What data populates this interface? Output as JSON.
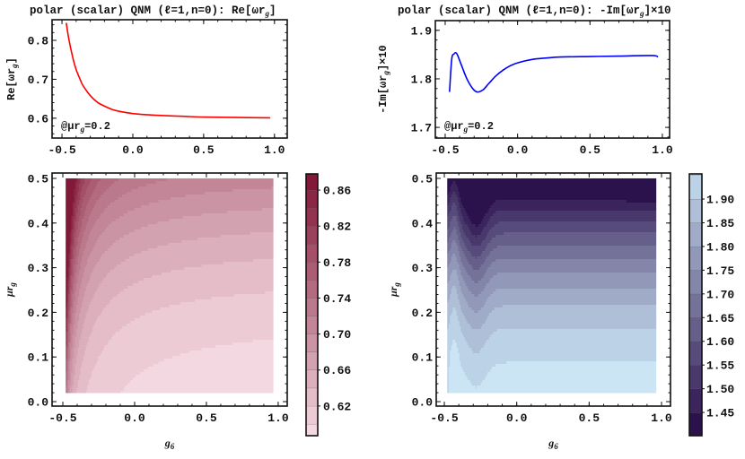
{
  "chart_data": [
    {
      "type": "line",
      "title": {
        "main": "polar (scalar) QNM (ℓ=1,n=0): Re[ωr",
        "sub": "g",
        "tail": "]"
      },
      "ylabel": {
        "main": "Re[ωr",
        "sub": "g",
        "tail": "]"
      },
      "annotation": {
        "main": "@μr",
        "sub": "g",
        "tail": "=0.2"
      },
      "xlim": [
        -0.57,
        1.09
      ],
      "ylim": [
        0.549,
        0.853
      ],
      "xticks": [
        "-0.5",
        "0.0",
        "0.5",
        "1.0"
      ],
      "yticks": [
        "0.6",
        "0.7",
        "0.8"
      ],
      "color": "#ff0000",
      "x": [
        -0.47,
        -0.45,
        -0.42,
        -0.4,
        -0.37,
        -0.35,
        -0.3,
        -0.25,
        -0.2,
        -0.15,
        -0.1,
        0.0,
        0.1,
        0.2,
        0.35,
        0.5,
        0.7,
        0.97
      ],
      "y": [
        0.845,
        0.8,
        0.75,
        0.725,
        0.698,
        0.683,
        0.658,
        0.641,
        0.631,
        0.623,
        0.618,
        0.612,
        0.609,
        0.607,
        0.605,
        0.603,
        0.602,
        0.601
      ]
    },
    {
      "type": "line",
      "title": {
        "main": "polar (scalar) QNM (ℓ=1,n=0): -Im[ωr",
        "sub": "g",
        "tail": "]×10"
      },
      "ylabel": {
        "main": "-Im[ωr",
        "sub": "g",
        "tail": "]×10"
      },
      "annotation": {
        "main": "@μr",
        "sub": "g",
        "tail": "=0.2"
      },
      "xlim": [
        -0.568,
        1.05
      ],
      "ylim": [
        1.678,
        1.92
      ],
      "xticks": [
        "-0.5",
        "0.0",
        "0.5",
        "1.0"
      ],
      "yticks": [
        "1.7",
        "1.8",
        "1.9"
      ],
      "color": "#0000ff",
      "x": [
        -0.47,
        -0.455,
        -0.44,
        -0.42,
        -0.39,
        -0.35,
        -0.31,
        -0.28,
        -0.24,
        -0.2,
        -0.15,
        -0.1,
        -0.05,
        0.0,
        0.1,
        0.2,
        0.3,
        0.5,
        0.7,
        0.93,
        0.97
      ],
      "y": [
        1.773,
        1.84,
        1.851,
        1.852,
        1.83,
        1.8,
        1.78,
        1.773,
        1.777,
        1.79,
        1.806,
        1.818,
        1.827,
        1.833,
        1.84,
        1.843,
        1.845,
        1.846,
        1.847,
        1.848,
        1.845
      ]
    },
    {
      "type": "heatmap",
      "xlabel": {
        "main": "g",
        "sub": "6"
      },
      "ylabel": {
        "main": "μr",
        "sub": "g"
      },
      "xlim": [
        -0.575,
        1.063
      ],
      "ylim": [
        -0.01,
        0.512
      ],
      "data_xrange": [
        -0.48,
        0.97
      ],
      "data_yrange": [
        0.02,
        0.5
      ],
      "xticks": [
        "-0.5",
        "0.0",
        "0.5",
        "1.0"
      ],
      "yticks": [
        "0.0",
        "0.1",
        "0.2",
        "0.3",
        "0.4",
        "0.5"
      ],
      "colorbar": {
        "range": [
          0.587,
          0.878
        ],
        "levels_step": 0.02,
        "ticks": [
          "0.62",
          "0.66",
          "0.70",
          "0.74",
          "0.78",
          "0.82",
          "0.86"
        ],
        "color_low": "#f8dfe7",
        "color_high": "#7e1232"
      }
    },
    {
      "type": "heatmap",
      "xlabel": {
        "main": "g",
        "sub": "6"
      },
      "ylabel": {
        "main": "μr",
        "sub": "g"
      },
      "xlim": [
        -0.556,
        1.062
      ],
      "ylim": [
        -0.01,
        0.512
      ],
      "data_xrange": [
        -0.48,
        0.97
      ],
      "data_yrange": [
        0.02,
        0.5
      ],
      "xticks": [
        "-0.5",
        "0.0",
        "0.5",
        "1.0"
      ],
      "yticks": [
        "0.0",
        "0.1",
        "0.2",
        "0.3",
        "0.4",
        "0.5"
      ],
      "colorbar": {
        "range": [
          1.401,
          1.953
        ],
        "levels_step": 0.05,
        "ticks": [
          "1.45",
          "1.50",
          "1.55",
          "1.60",
          "1.65",
          "1.70",
          "1.75",
          "1.80",
          "1.85",
          "1.90"
        ],
        "color_low": "#250845",
        "color_high": "#d2effd"
      }
    }
  ]
}
